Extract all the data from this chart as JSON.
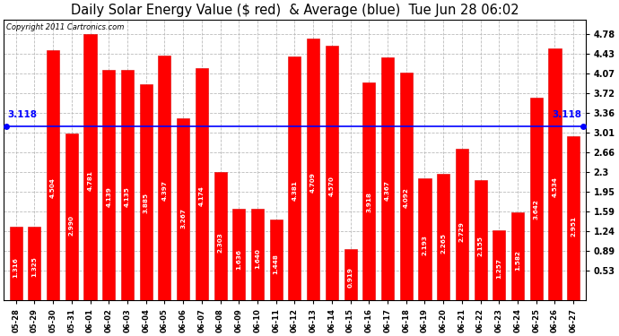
{
  "title": "Daily Solar Energy Value ($ red)  & Average (blue)  Tue Jun 28 06:02",
  "copyright": "Copyright 2011 Cartronics.com",
  "categories": [
    "05-28",
    "05-29",
    "05-30",
    "05-31",
    "06-01",
    "06-02",
    "06-03",
    "06-04",
    "06-05",
    "06-06",
    "06-07",
    "06-08",
    "06-09",
    "06-10",
    "06-11",
    "06-12",
    "06-13",
    "06-14",
    "06-15",
    "06-16",
    "06-17",
    "06-18",
    "06-19",
    "06-20",
    "06-21",
    "06-22",
    "06-23",
    "06-24",
    "06-25",
    "06-26",
    "06-27"
  ],
  "values": [
    1.316,
    1.325,
    4.504,
    2.99,
    4.781,
    4.139,
    4.135,
    3.885,
    4.397,
    3.267,
    4.174,
    2.303,
    1.636,
    1.64,
    1.448,
    4.381,
    4.709,
    4.57,
    0.919,
    3.918,
    4.367,
    4.092,
    2.193,
    2.265,
    2.729,
    2.155,
    1.257,
    1.582,
    3.642,
    4.534,
    2.951
  ],
  "average": 3.118,
  "bar_color": "#ff0000",
  "avg_line_color": "#0000ff",
  "background_color": "#ffffff",
  "plot_bg_color": "#ffffff",
  "grid_color": "#bbbbbb",
  "yticks_right": [
    0.53,
    0.89,
    1.24,
    1.59,
    1.95,
    2.3,
    2.66,
    3.01,
    3.36,
    3.72,
    4.07,
    4.43,
    4.78
  ],
  "ylim_min": 0.0,
  "ylim_max": 5.05,
  "title_fontsize": 10.5,
  "bar_edge_color": "#dd0000",
  "label_fontsize": 5.2,
  "tick_fontsize": 7.0,
  "copyright_fontsize": 6.0,
  "avg_label_fontsize": 7.5
}
